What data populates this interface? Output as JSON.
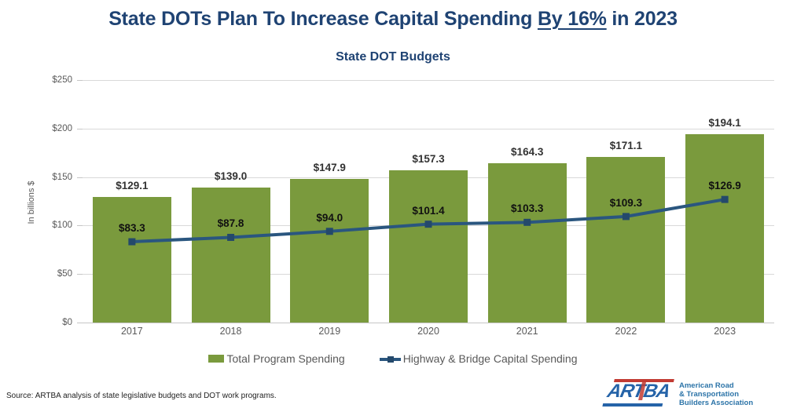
{
  "title": {
    "prefix": "State DOTs Plan To Increase Capital Spending ",
    "underlined": "By 16%",
    "suffix": " in 2023"
  },
  "subtitle": "State DOT Budgets",
  "y_axis_title": "In billions $",
  "source_note": "Source: ARTBA analysis of state legislative budgets and DOT work programs.",
  "logo": {
    "mark_text": "ARTBA",
    "lines": [
      "American Road",
      "& Transportation",
      "Builders Association"
    ]
  },
  "colors": {
    "title_navy": "#1F4373",
    "bar_green": "#7A9A3D",
    "line_blue": "#2A567F",
    "marker_blue": "#24496B",
    "axis_text_gray": "#595959",
    "gridline_gray": "#D9D9D9",
    "logo_red": "#C23B33",
    "logo_blue": "#2563A8",
    "logo_text_blue": "#2C74A8"
  },
  "chart_data": {
    "type": "bar",
    "title": "State DOT Budgets",
    "categories": [
      "2017",
      "2018",
      "2019",
      "2020",
      "2021",
      "2022",
      "2023"
    ],
    "series": [
      {
        "name": "Total Program Spending",
        "kind": "bar",
        "color": "#7A9A3D",
        "values": [
          129.1,
          139.0,
          147.9,
          157.3,
          164.3,
          171.1,
          194.1
        ],
        "data_labels": [
          "$129.1",
          "$139.0",
          "$147.9",
          "$157.3",
          "$164.3",
          "$171.1",
          "$194.1"
        ]
      },
      {
        "name": "Highway & Bridge Capital Spending",
        "kind": "line",
        "color": "#2A567F",
        "values": [
          83.3,
          87.8,
          94.0,
          101.4,
          103.3,
          109.3,
          126.9
        ],
        "data_labels": [
          "$83.3",
          "$87.8",
          "$94.0",
          "$101.4",
          "$103.3",
          "$109.3",
          "$126.9"
        ]
      }
    ],
    "xlabel": "",
    "ylabel": "In billions $",
    "ylim": [
      0,
      250
    ],
    "ytick_values": [
      0,
      50,
      100,
      150,
      200,
      250
    ],
    "ytick_labels": [
      "$0",
      "$50",
      "$100",
      "$150",
      "$200",
      "$250"
    ],
    "grid": "horizontal",
    "legend_position": "bottom"
  }
}
